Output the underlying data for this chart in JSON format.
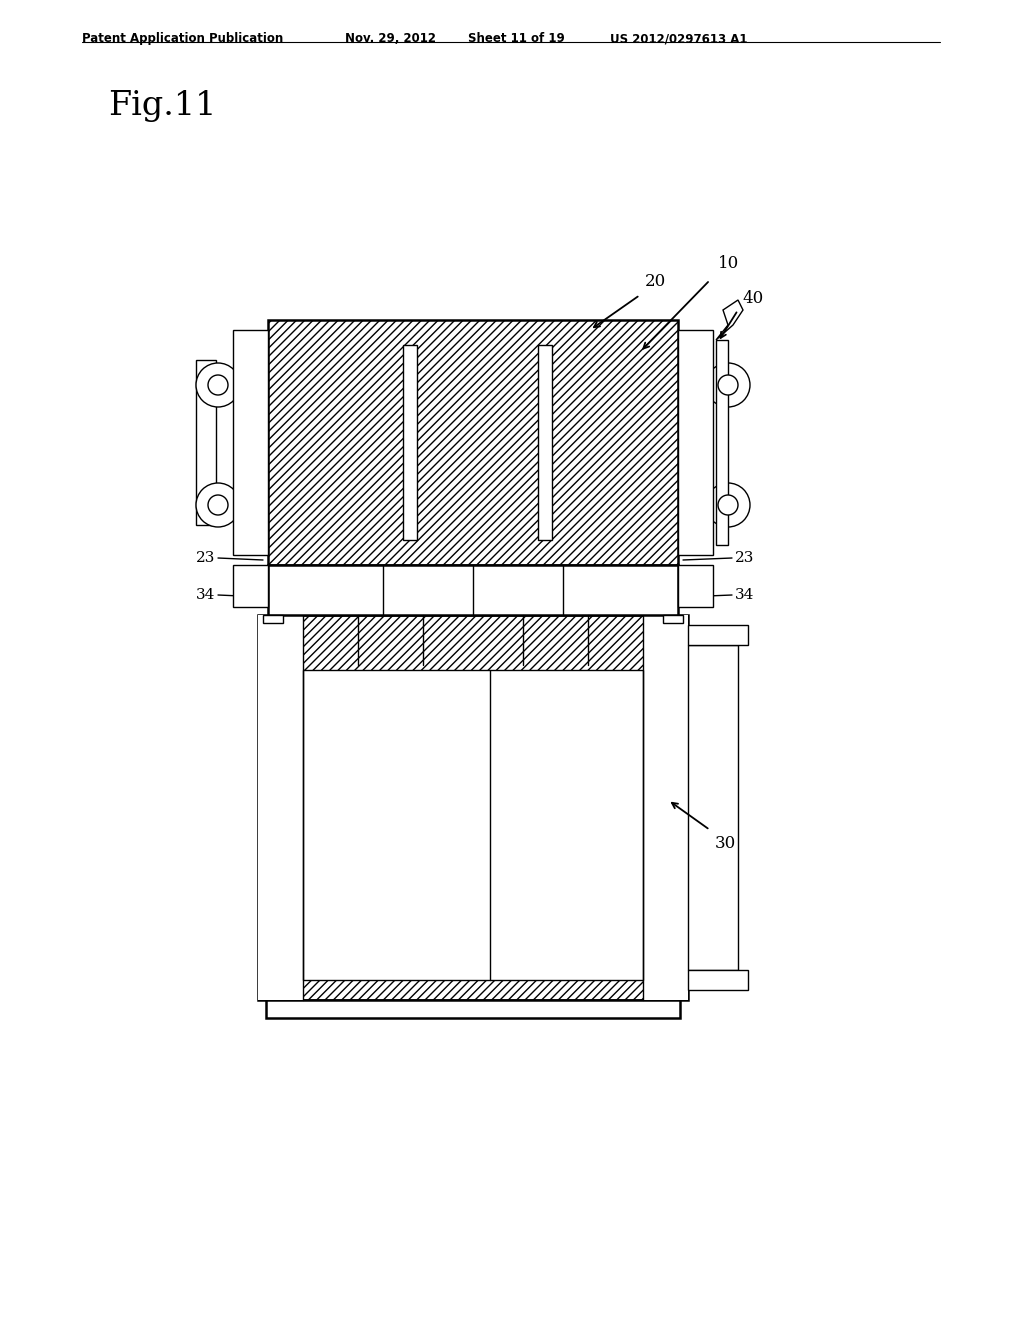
{
  "bg_color": "#ffffff",
  "header_text": "Patent Application Publication",
  "header_date": "Nov. 29, 2012",
  "header_sheet": "Sheet 11 of 19",
  "header_patent": "US 2012/0297613 A1",
  "fig_label": "Fig.11",
  "label_10": "10",
  "label_20": "20",
  "label_30": "30",
  "label_40": "40",
  "label_23_left": "23",
  "label_23_right": "23",
  "label_34_left": "34",
  "label_34_right": "34",
  "line_color": "#000000",
  "lw_main": 1.8,
  "lw_thin": 1.0
}
